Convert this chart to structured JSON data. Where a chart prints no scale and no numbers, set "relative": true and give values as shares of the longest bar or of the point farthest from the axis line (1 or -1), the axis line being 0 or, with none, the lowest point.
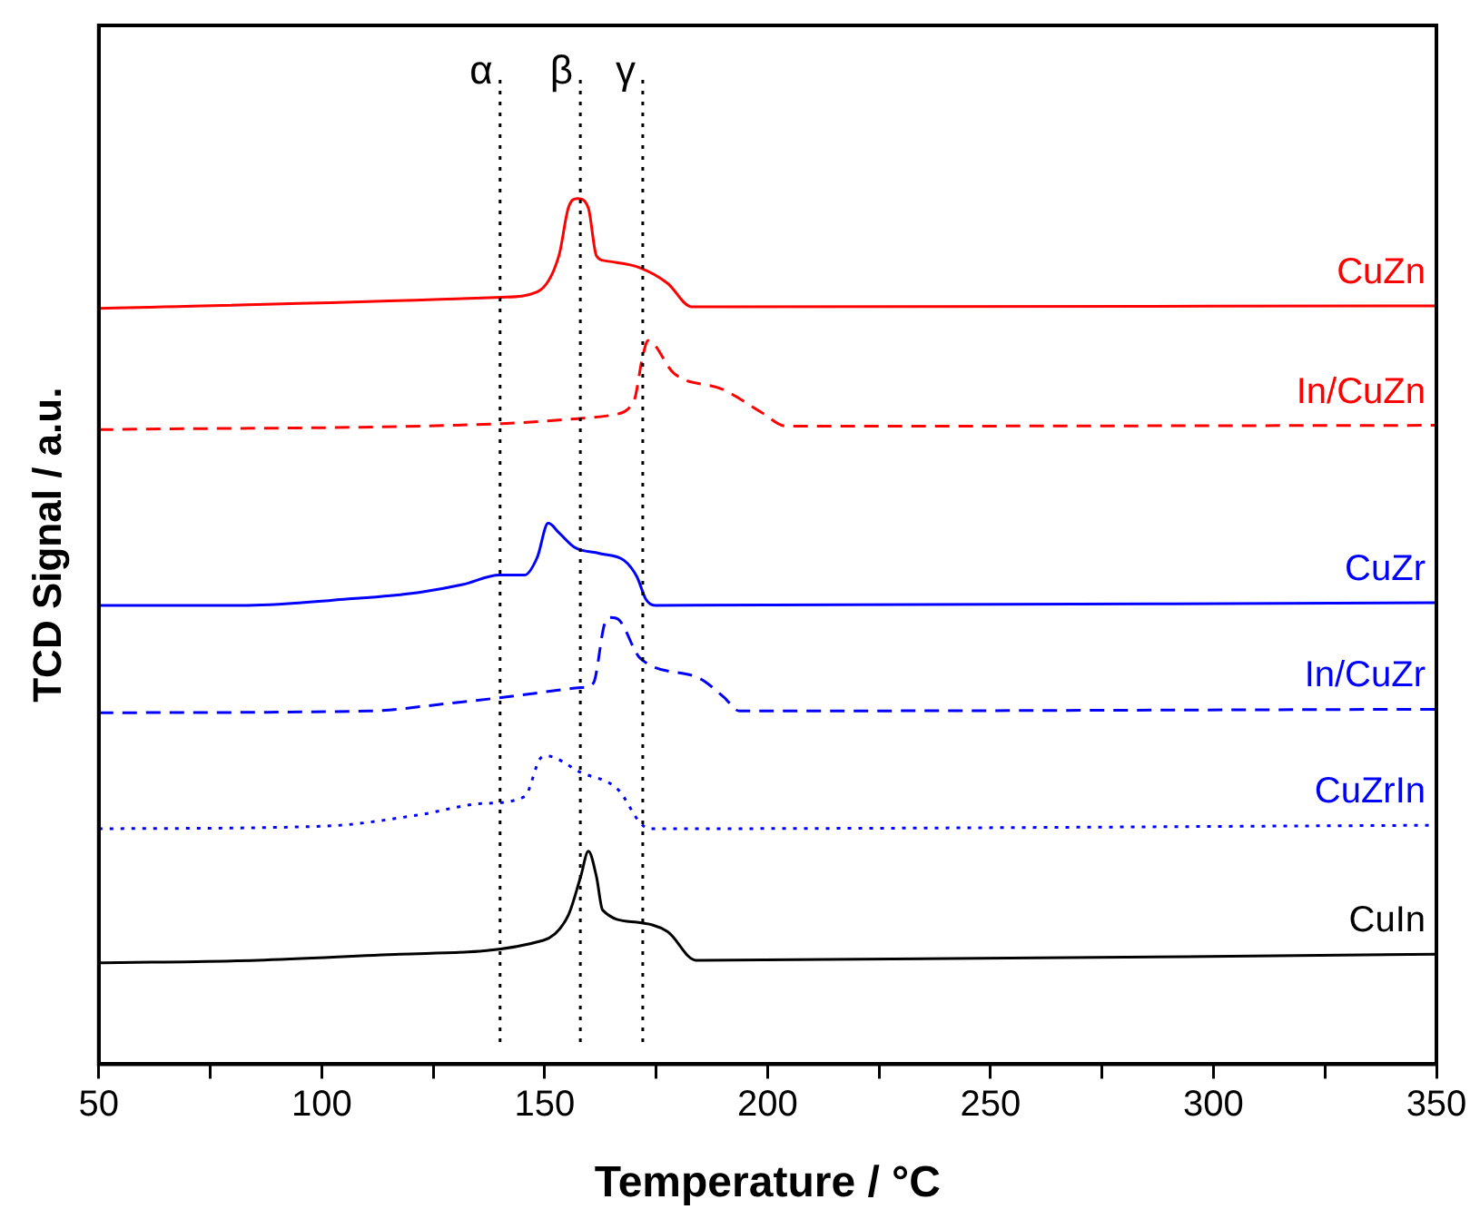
{
  "chart_data": {
    "type": "line",
    "relative": true,
    "xlabel": "Temperature / °C",
    "ylabel": "TCD Signal / a.u.",
    "xlim": [
      50,
      350
    ],
    "xticks": [
      50,
      {
        "value": 75,
        "label": null
      },
      100,
      {
        "value": 125,
        "label": null
      },
      150,
      {
        "value": 175,
        "label": null
      },
      200,
      {
        "value": 225,
        "label": null
      },
      250,
      {
        "value": 275,
        "label": null
      },
      300,
      {
        "value": 325,
        "label": null
      },
      350
    ],
    "legend": false,
    "grid": false,
    "marker": "none",
    "ref_lines": [
      {
        "axis": "x",
        "value": 140,
        "label": "α",
        "color": "#000000",
        "line_style": "dotted"
      },
      {
        "axis": "x",
        "value": 158,
        "label": "β",
        "color": "#000000",
        "line_style": "dotted"
      },
      {
        "axis": "x",
        "value": 172,
        "label": "γ",
        "color": "#000000",
        "line_style": "dotted"
      }
    ],
    "series": [
      {
        "name": "CuZn",
        "color": "#ff0000",
        "line_style": "solid",
        "x": [
          50,
          140.4,
          148.3,
          153.2,
          155.3,
          157.4,
          159.8,
          161.6,
          163.7,
          171.4,
          177.6,
          182.9,
          350
        ],
        "values": [
          0.873,
          0.886,
          0.892,
          0.934,
          0.989,
          1,
          0.989,
          0.934,
          0.928,
          0.92,
          0.902,
          0.875,
          0.876
        ]
      },
      {
        "name": "In/CuZn",
        "color": "#ff0000",
        "line_style": "dashed",
        "x": [
          50,
          140.4,
          158.1,
          165.1,
          170,
          172,
          173.2,
          179,
          190.2,
          198.6,
          204.2,
          350
        ],
        "values": [
          0.733,
          0.74,
          0.746,
          0.75,
          0.766,
          0.818,
          0.836,
          0.798,
          0.779,
          0.753,
          0.737,
          0.738
        ]
      },
      {
        "name": "CuZr",
        "color": "#0000ff",
        "line_style": "solid",
        "x": [
          50,
          83.4,
          105,
          121.8,
          131.6,
          139.9,
          145.5,
          148.3,
          150.8,
          153.2,
          156.7,
          162.3,
          167.8,
          170.7,
          172.7,
          174.8,
          350
        ],
        "values": [
          0.53,
          0.53,
          0.537,
          0.545,
          0.554,
          0.565,
          0.565,
          0.585,
          0.625,
          0.614,
          0.597,
          0.59,
          0.582,
          0.563,
          0.537,
          0.53,
          0.533
        ]
      },
      {
        "name": "In/CuZr",
        "color": "#0000ff",
        "line_style": "dashed",
        "x": [
          50,
          110.6,
          128.8,
          142.7,
          158.1,
          160.9,
          163.4,
          164.8,
          166.5,
          171.4,
          184.6,
          190.2,
          193.7,
          350
        ],
        "values": [
          0.406,
          0.408,
          0.417,
          0.425,
          0.435,
          0.44,
          0.508,
          0.516,
          0.514,
          0.469,
          0.446,
          0.424,
          0.408,
          0.41
        ]
      },
      {
        "name": "CuZrIn",
        "color": "#0000ff",
        "line_style": "dotted",
        "x": [
          50,
          100.8,
          121.8,
          135.8,
          145.5,
          149,
          150.4,
          158.1,
          166.5,
          171.4,
          173.5,
          350
        ],
        "values": [
          0.272,
          0.275,
          0.288,
          0.301,
          0.309,
          0.353,
          0.356,
          0.337,
          0.317,
          0.279,
          0.272,
          0.276
        ]
      },
      {
        "name": "CuIn",
        "color": "#000000",
        "line_style": "solid",
        "x": [
          50,
          85.5,
          117.6,
          149.7,
          155.3,
          158.1,
          159.8,
          161.6,
          163,
          170.7,
          177.6,
          183.9,
          350
        ],
        "values": [
          0.117,
          0.12,
          0.127,
          0.143,
          0.172,
          0.217,
          0.246,
          0.217,
          0.178,
          0.164,
          0.153,
          0.12,
          0.127
        ]
      }
    ]
  }
}
